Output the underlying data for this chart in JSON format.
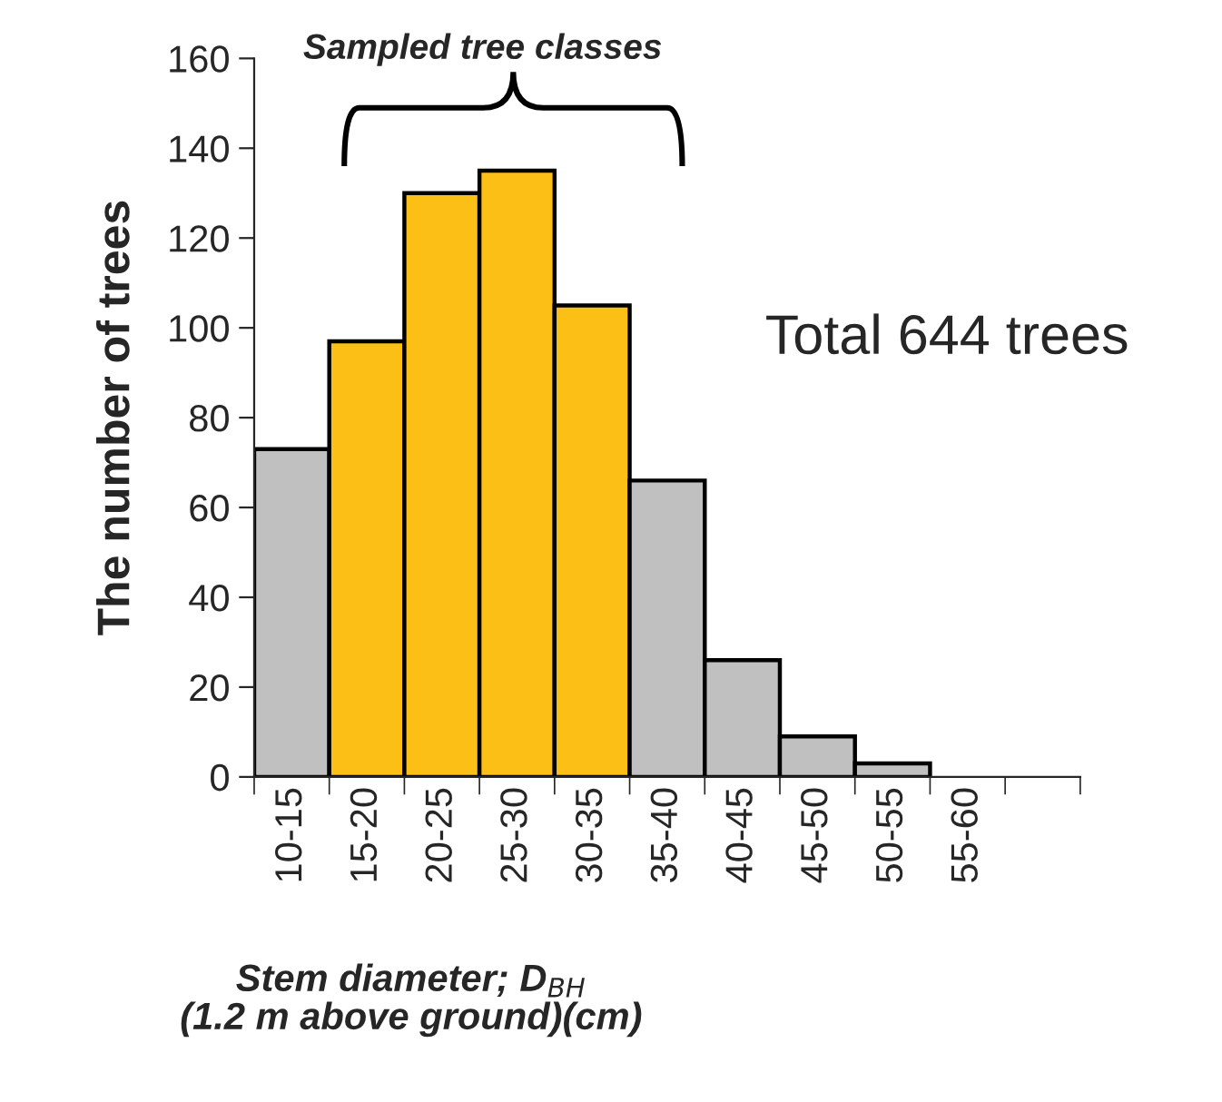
{
  "chart_data": {
    "type": "bar",
    "ylabel": "The number of trees",
    "xlabel": "Stem diameter; D$_{BH}$\n(1.2 m above ground)(cm)",
    "categories": [
      "10-15",
      "15-20",
      "20-25",
      "25-30",
      "30-35",
      "35-40",
      "40-45",
      "45-50",
      "50-55",
      "55-60",
      null
    ],
    "values": [
      73,
      97,
      130,
      135,
      105,
      66,
      26,
      9,
      3,
      null,
      null
    ],
    "colors": [
      "#c0c0c0",
      "#fbbf16",
      "#fbbf16",
      "#fbbf16",
      "#fbbf16",
      "#c0c0c0",
      "#c0c0c0",
      "#c0c0c0",
      "#c0c0c0",
      "#c0c0c0",
      "#c0c0c0"
    ],
    "ylim": [
      0,
      160
    ],
    "yticks": [
      0,
      20,
      40,
      60,
      80,
      100,
      120,
      140,
      160
    ],
    "grid": false,
    "annotations": [
      "Sampled tree classes",
      "Total 644 trees"
    ]
  }
}
